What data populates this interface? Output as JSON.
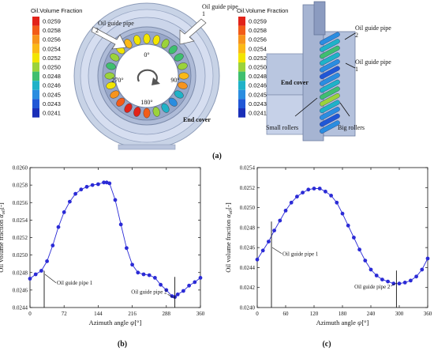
{
  "panel_a": {
    "legend_title": "Oil.Volume Fraction",
    "legend_values": [
      "0.0259",
      "0.0258",
      "0.0256",
      "0.0254",
      "0.0252",
      "0.0250",
      "0.0248",
      "0.0246",
      "0.0245",
      "0.0243",
      "0.0241"
    ],
    "legend_colors": [
      "#e2231a",
      "#f25c19",
      "#f7941d",
      "#fbb917",
      "#f2e500",
      "#9bd33b",
      "#3fbf6f",
      "#1fb2c8",
      "#2a8de0",
      "#2057d6",
      "#1a2fb8"
    ],
    "front_view": {
      "label_pipe1": "Oil guide pipe 1",
      "label_pipe2": "Oil guide pipe 2",
      "label_end_cover": "End cover",
      "angle_0": "0°",
      "angle_90": "90°",
      "angle_180": "180°",
      "angle_270": "270°"
    },
    "side_view": {
      "label_pipe2": "Oil guide pipe 2",
      "label_pipe1": "Oil guide pipe 1",
      "label_end_cover": "End cover",
      "label_small_rollers": "Small rollers",
      "label_big_rollers": "Big rollers"
    },
    "caption": "(a)"
  },
  "caption_b": "(b)",
  "caption_c": "(c)",
  "chart_data": [
    {
      "type": "line",
      "panel": "b",
      "xlabel": "Azimuth angle",
      "xlabel_symbol": "ψ",
      "xlabel_unit": "[°]",
      "ylabel": "Oil volume fraction",
      "ylabel_symbol": "α",
      "ylabel_sub": "oil",
      "ylabel_unit": "[-]",
      "xlim": [
        0,
        360
      ],
      "ylim": [
        0.0244,
        0.026
      ],
      "xticks": [
        "0",
        "72",
        "144",
        "216",
        "288",
        "360"
      ],
      "yticks": [
        "0.0244",
        "0.0246",
        "0.0248",
        "0.0250",
        "0.0252",
        "0.0254",
        "0.0256",
        "0.0258",
        "0.0260"
      ],
      "color": "#2b2bd6",
      "x": [
        0,
        12,
        24,
        36,
        48,
        60,
        72,
        84,
        96,
        108,
        120,
        132,
        144,
        156,
        162,
        168,
        180,
        192,
        204,
        216,
        228,
        240,
        252,
        264,
        276,
        288,
        300,
        306,
        312,
        324,
        336,
        348,
        360
      ],
      "y": [
        0.02473,
        0.02478,
        0.02482,
        0.02493,
        0.02511,
        0.02532,
        0.02549,
        0.02561,
        0.0257,
        0.02575,
        0.02578,
        0.0258,
        0.02581,
        0.02583,
        0.02583,
        0.02582,
        0.02563,
        0.02535,
        0.02508,
        0.02489,
        0.0248,
        0.02478,
        0.02477,
        0.02474,
        0.02466,
        0.0246,
        0.02453,
        0.02452,
        0.02455,
        0.02459,
        0.02465,
        0.02469,
        0.02474
      ],
      "annotations": [
        {
          "text": "Oil guide pipe 1",
          "x": 30
        },
        {
          "text": "Oil guide pipe 2",
          "x": 306
        }
      ]
    },
    {
      "type": "line",
      "panel": "c",
      "xlabel": "Azimuth angle",
      "xlabel_symbol": "ψ",
      "xlabel_unit": "[°]",
      "ylabel": "Oil volume fraction",
      "ylabel_symbol": "α",
      "ylabel_sub": "oil",
      "ylabel_unit": "[-]",
      "xlim": [
        0,
        360
      ],
      "ylim": [
        0.024,
        0.0254
      ],
      "xticks": [
        "0",
        "60",
        "120",
        "180",
        "240",
        "300",
        "360"
      ],
      "yticks": [
        "0.0240",
        "0.0242",
        "0.0244",
        "0.0246",
        "0.0248",
        "0.0250",
        "0.0252",
        "0.0254"
      ],
      "color": "#2b2bd6",
      "x": [
        0,
        12,
        24,
        36,
        48,
        60,
        72,
        84,
        96,
        108,
        120,
        132,
        144,
        156,
        168,
        180,
        192,
        204,
        216,
        228,
        240,
        252,
        264,
        276,
        288,
        300,
        312,
        324,
        336,
        348,
        360
      ],
      "y": [
        0.02448,
        0.02457,
        0.02466,
        0.02477,
        0.02487,
        0.02497,
        0.02505,
        0.02511,
        0.02515,
        0.02518,
        0.02519,
        0.02519,
        0.02516,
        0.02512,
        0.02505,
        0.02494,
        0.02482,
        0.0247,
        0.02458,
        0.02447,
        0.02438,
        0.02432,
        0.02428,
        0.02426,
        0.02424,
        0.02424,
        0.02425,
        0.02427,
        0.02431,
        0.02438,
        0.02449
      ],
      "annotations": [
        {
          "text": "Oil guide pipe 1",
          "x": 30
        },
        {
          "text": "Oil guide pipe 2",
          "x": 294
        }
      ]
    }
  ]
}
